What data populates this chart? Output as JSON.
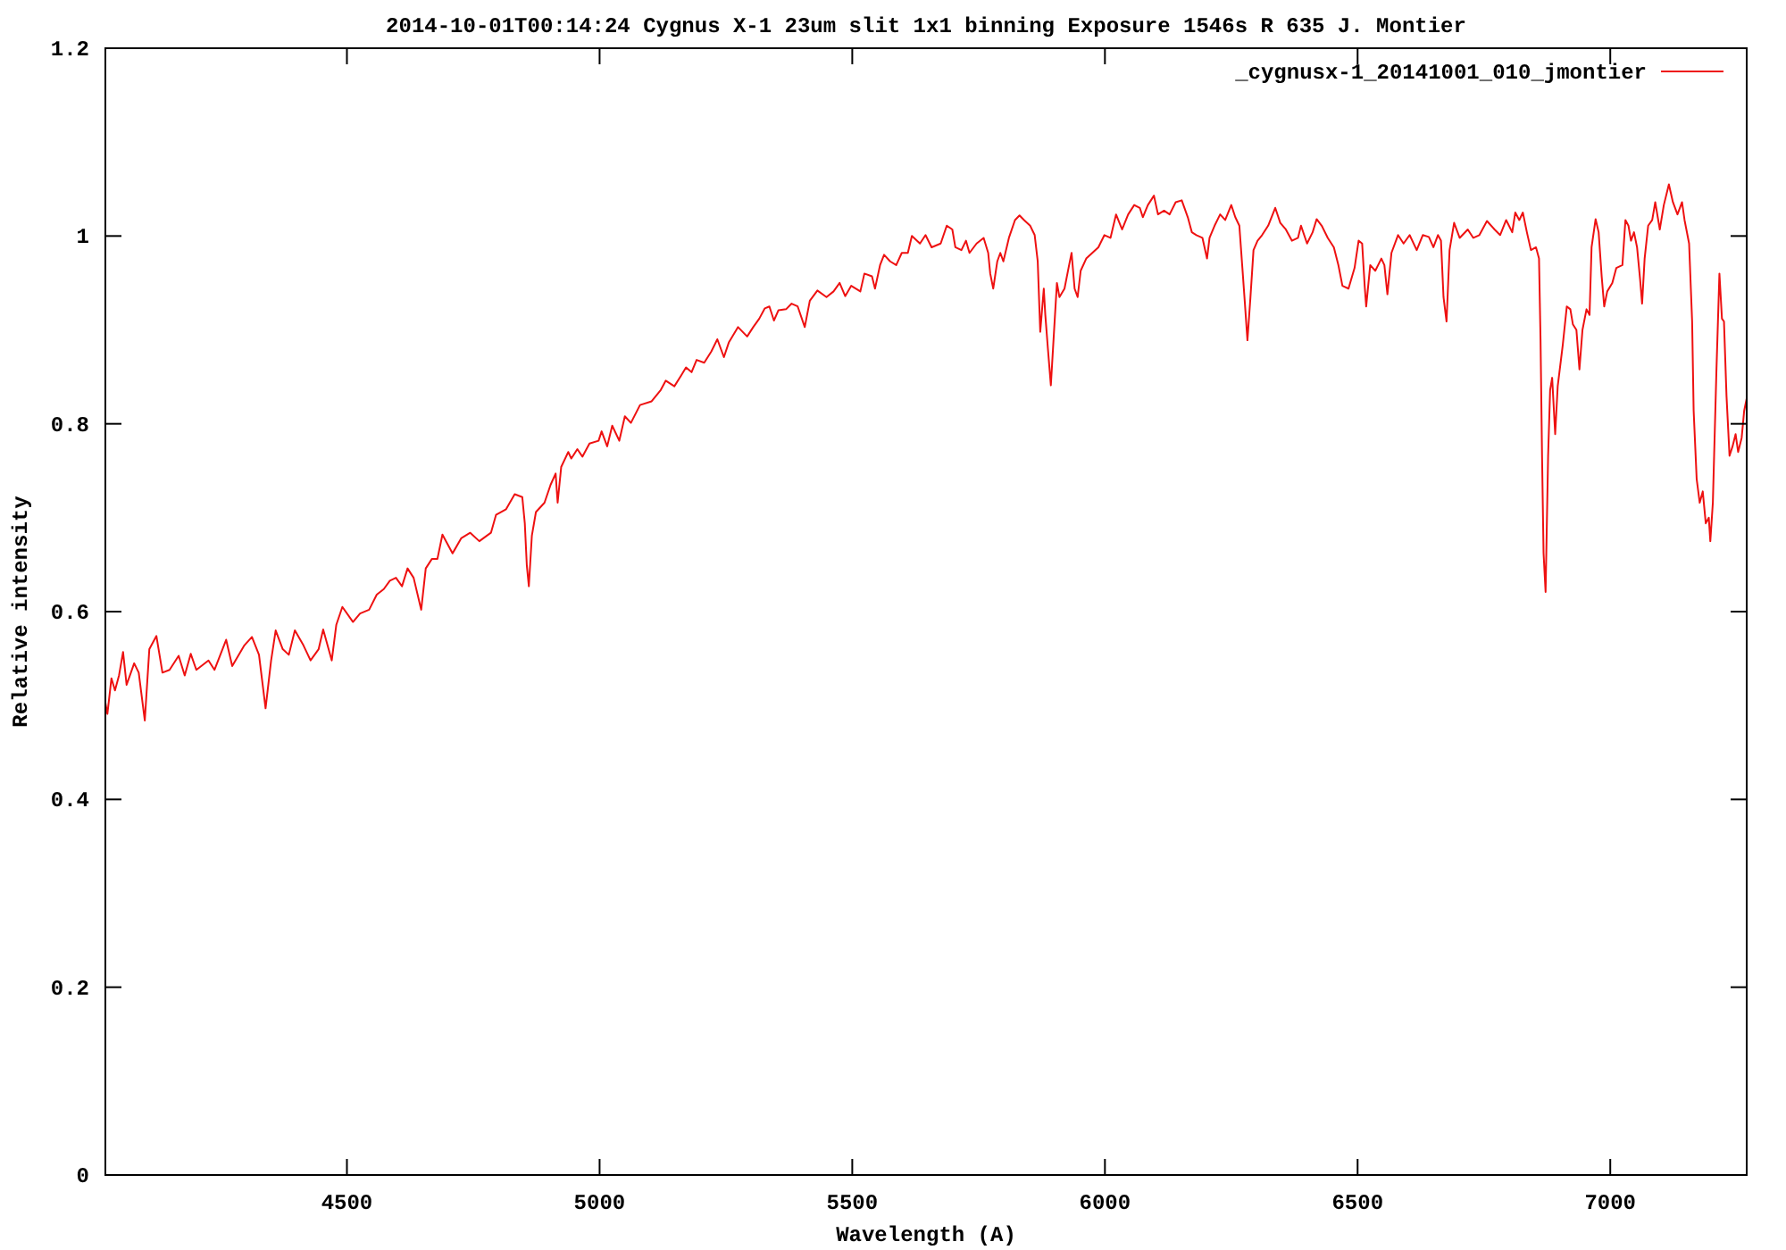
{
  "chart_data": {
    "type": "line",
    "title": "2014-10-01T00:14:24 Cygnus X-1 23um slit 1x1 binning Exposure 1546s R 635 J. Montier",
    "xlabel": "Wavelength (A)",
    "ylabel": "Relative intensity",
    "xlim": [
      4022,
      7270
    ],
    "ylim": [
      0,
      1.2
    ],
    "xticks": [
      4500,
      5000,
      5500,
      6000,
      6500,
      7000
    ],
    "yticks": [
      0,
      0.2,
      0.4,
      0.6,
      0.8,
      1,
      1.2
    ],
    "legend": "top right",
    "series": [
      {
        "name": "_cygnusx-1_20141001_010_jmontier",
        "color": "#ee1111",
        "x": [
          4022,
          4026,
          4034,
          4041,
          4049,
          4057,
          4064,
          4079,
          4088,
          4100,
          4109,
          4123,
          4135,
          4149,
          4167,
          4179,
          4191,
          4202,
          4226,
          4238,
          4261,
          4273,
          4297,
          4312,
          4326,
          4339,
          4350,
          4359,
          4373,
          4385,
          4397,
          4414,
          4428,
          4444,
          4453,
          4470,
          4479,
          4491,
          4512,
          4526,
          4544,
          4559,
          4573,
          4585,
          4597,
          4609,
          4620,
          4632,
          4647,
          4656,
          4668,
          4679,
          4689,
          4709,
          4726,
          4744,
          4762,
          4785,
          4795,
          4815,
          4832,
          4847,
          4852,
          4856,
          4860,
          4866,
          4874,
          4891,
          4903,
          4913,
          4917,
          4924,
          4938,
          4944,
          4956,
          4966,
          4980,
          4998,
          5004,
          5015,
          5025,
          5039,
          5050,
          5062,
          5080,
          5103,
          5121,
          5131,
          5148,
          5162,
          5171,
          5182,
          5192,
          5207,
          5221,
          5233,
          5246,
          5256,
          5274,
          5292,
          5304,
          5316,
          5327,
          5336,
          5345,
          5354,
          5369,
          5380,
          5392,
          5406,
          5416,
          5431,
          5449,
          5463,
          5475,
          5486,
          5498,
          5516,
          5524,
          5539,
          5545,
          5555,
          5563,
          5575,
          5587,
          5598,
          5610,
          5618,
          5634,
          5645,
          5657,
          5675,
          5687,
          5698,
          5704,
          5716,
          5725,
          5732,
          5746,
          5760,
          5769,
          5773,
          5779,
          5787,
          5793,
          5799,
          5810,
          5822,
          5831,
          5840,
          5852,
          5861,
          5867,
          5872,
          5879,
          5882,
          5887,
          5893,
          5899,
          5905,
          5910,
          5920,
          5928,
          5934,
          5940,
          5946,
          5952,
          5963,
          5975,
          5987,
          5999,
          6011,
          6022,
          6034,
          6046,
          6058,
          6069,
          6075,
          6085,
          6097,
          6105,
          6117,
          6128,
          6140,
          6152,
          6164,
          6172,
          6181,
          6193,
          6202,
          6207,
          6217,
          6228,
          6238,
          6250,
          6258,
          6266,
          6272,
          6277,
          6282,
          6288,
          6294,
          6302,
          6311,
          6323,
          6337,
          6347,
          6358,
          6370,
          6382,
          6388,
          6400,
          6411,
          6419,
          6429,
          6441,
          6453,
          6462,
          6470,
          6482,
          6494,
          6502,
          6509,
          6514,
          6517,
          6525,
          6535,
          6547,
          6553,
          6559,
          6567,
          6580,
          6591,
          6603,
          6617,
          6629,
          6641,
          6650,
          6659,
          6665,
          6670,
          6676,
          6682,
          6691,
          6702,
          6718,
          6729,
          6741,
          6756,
          6771,
          6782,
          6794,
          6806,
          6812,
          6820,
          6827,
          6835,
          6843,
          6853,
          6859,
          6862,
          6865,
          6868,
          6872,
          6877,
          6881,
          6885,
          6891,
          6896,
          6906,
          6914,
          6921,
          6926,
          6933,
          6939,
          6945,
          6953,
          6959,
          6963,
          6971,
          6977,
          6983,
          6988,
          6994,
          7004,
          7012,
          7024,
          7030,
          7036,
          7041,
          7047,
          7053,
          7059,
          7063,
          7068,
          7075,
          7083,
          7089,
          7098,
          7106,
          7116,
          7124,
          7133,
          7142,
          7147,
          7156,
          7162,
          7165,
          7171,
          7177,
          7183,
          7189,
          7195,
          7198,
          7203,
          7206,
          7210,
          7216,
          7221,
          7225,
          7230,
          7236,
          7242,
          7248,
          7253,
          7260,
          7265,
          7270
        ],
        "values": [
          0.503,
          0.491,
          0.529,
          0.516,
          0.532,
          0.557,
          0.522,
          0.545,
          0.535,
          0.484,
          0.56,
          0.574,
          0.535,
          0.538,
          0.553,
          0.532,
          0.555,
          0.538,
          0.548,
          0.538,
          0.57,
          0.542,
          0.564,
          0.573,
          0.554,
          0.497,
          0.548,
          0.58,
          0.56,
          0.554,
          0.58,
          0.564,
          0.548,
          0.56,
          0.581,
          0.548,
          0.586,
          0.605,
          0.589,
          0.598,
          0.602,
          0.618,
          0.624,
          0.633,
          0.636,
          0.627,
          0.646,
          0.636,
          0.602,
          0.646,
          0.656,
          0.656,
          0.682,
          0.662,
          0.678,
          0.684,
          0.675,
          0.684,
          0.703,
          0.709,
          0.725,
          0.722,
          0.694,
          0.649,
          0.627,
          0.681,
          0.706,
          0.716,
          0.735,
          0.747,
          0.716,
          0.754,
          0.77,
          0.763,
          0.773,
          0.765,
          0.779,
          0.782,
          0.792,
          0.776,
          0.798,
          0.782,
          0.808,
          0.801,
          0.82,
          0.824,
          0.836,
          0.846,
          0.84,
          0.852,
          0.86,
          0.855,
          0.868,
          0.865,
          0.877,
          0.89,
          0.871,
          0.887,
          0.903,
          0.893,
          0.903,
          0.912,
          0.923,
          0.925,
          0.91,
          0.921,
          0.922,
          0.928,
          0.925,
          0.903,
          0.931,
          0.942,
          0.935,
          0.941,
          0.95,
          0.936,
          0.947,
          0.941,
          0.96,
          0.957,
          0.944,
          0.969,
          0.98,
          0.973,
          0.969,
          0.982,
          0.982,
          1.0,
          0.992,
          1.001,
          0.988,
          0.992,
          1.011,
          1.007,
          0.988,
          0.985,
          0.995,
          0.982,
          0.992,
          0.998,
          0.982,
          0.96,
          0.944,
          0.973,
          0.982,
          0.973,
          0.998,
          1.017,
          1.022,
          1.017,
          1.011,
          1.001,
          0.973,
          0.898,
          0.944,
          0.916,
          0.881,
          0.841,
          0.896,
          0.95,
          0.935,
          0.944,
          0.966,
          0.982,
          0.944,
          0.935,
          0.963,
          0.976,
          0.982,
          0.988,
          1.001,
          0.998,
          1.023,
          1.007,
          1.023,
          1.033,
          1.03,
          1.02,
          1.033,
          1.043,
          1.023,
          1.027,
          1.023,
          1.036,
          1.038,
          1.02,
          1.004,
          1.001,
          0.998,
          0.976,
          0.998,
          1.011,
          1.023,
          1.017,
          1.033,
          1.02,
          1.011,
          0.966,
          0.928,
          0.889,
          0.935,
          0.985,
          0.995,
          1.001,
          1.011,
          1.03,
          1.014,
          1.007,
          0.995,
          0.998,
          1.011,
          0.992,
          1.004,
          1.018,
          1.011,
          0.998,
          0.988,
          0.969,
          0.947,
          0.944,
          0.966,
          0.995,
          0.992,
          0.947,
          0.925,
          0.969,
          0.963,
          0.976,
          0.969,
          0.938,
          0.982,
          1.001,
          0.992,
          1.001,
          0.985,
          1.001,
          0.999,
          0.988,
          1.001,
          0.995,
          0.935,
          0.909,
          0.985,
          1.014,
          0.998,
          1.007,
          0.998,
          1.001,
          1.016,
          1.007,
          1.001,
          1.017,
          1.004,
          1.025,
          1.017,
          1.025,
          1.004,
          0.985,
          0.988,
          0.976,
          0.89,
          0.766,
          0.662,
          0.621,
          0.766,
          0.836,
          0.849,
          0.789,
          0.84,
          0.884,
          0.925,
          0.922,
          0.906,
          0.9,
          0.858,
          0.9,
          0.922,
          0.916,
          0.988,
          1.018,
          1.004,
          0.957,
          0.925,
          0.941,
          0.95,
          0.966,
          0.969,
          1.017,
          1.011,
          0.995,
          1.004,
          0.988,
          0.954,
          0.928,
          0.976,
          1.011,
          1.017,
          1.036,
          1.007,
          1.033,
          1.055,
          1.036,
          1.023,
          1.036,
          1.017,
          0.992,
          0.909,
          0.814,
          0.741,
          0.716,
          0.728,
          0.694,
          0.7,
          0.675,
          0.716,
          0.776,
          0.855,
          0.96,
          0.912,
          0.909,
          0.83,
          0.766,
          0.776,
          0.789,
          0.77,
          0.785,
          0.814,
          0.827
        ]
      }
    ]
  }
}
